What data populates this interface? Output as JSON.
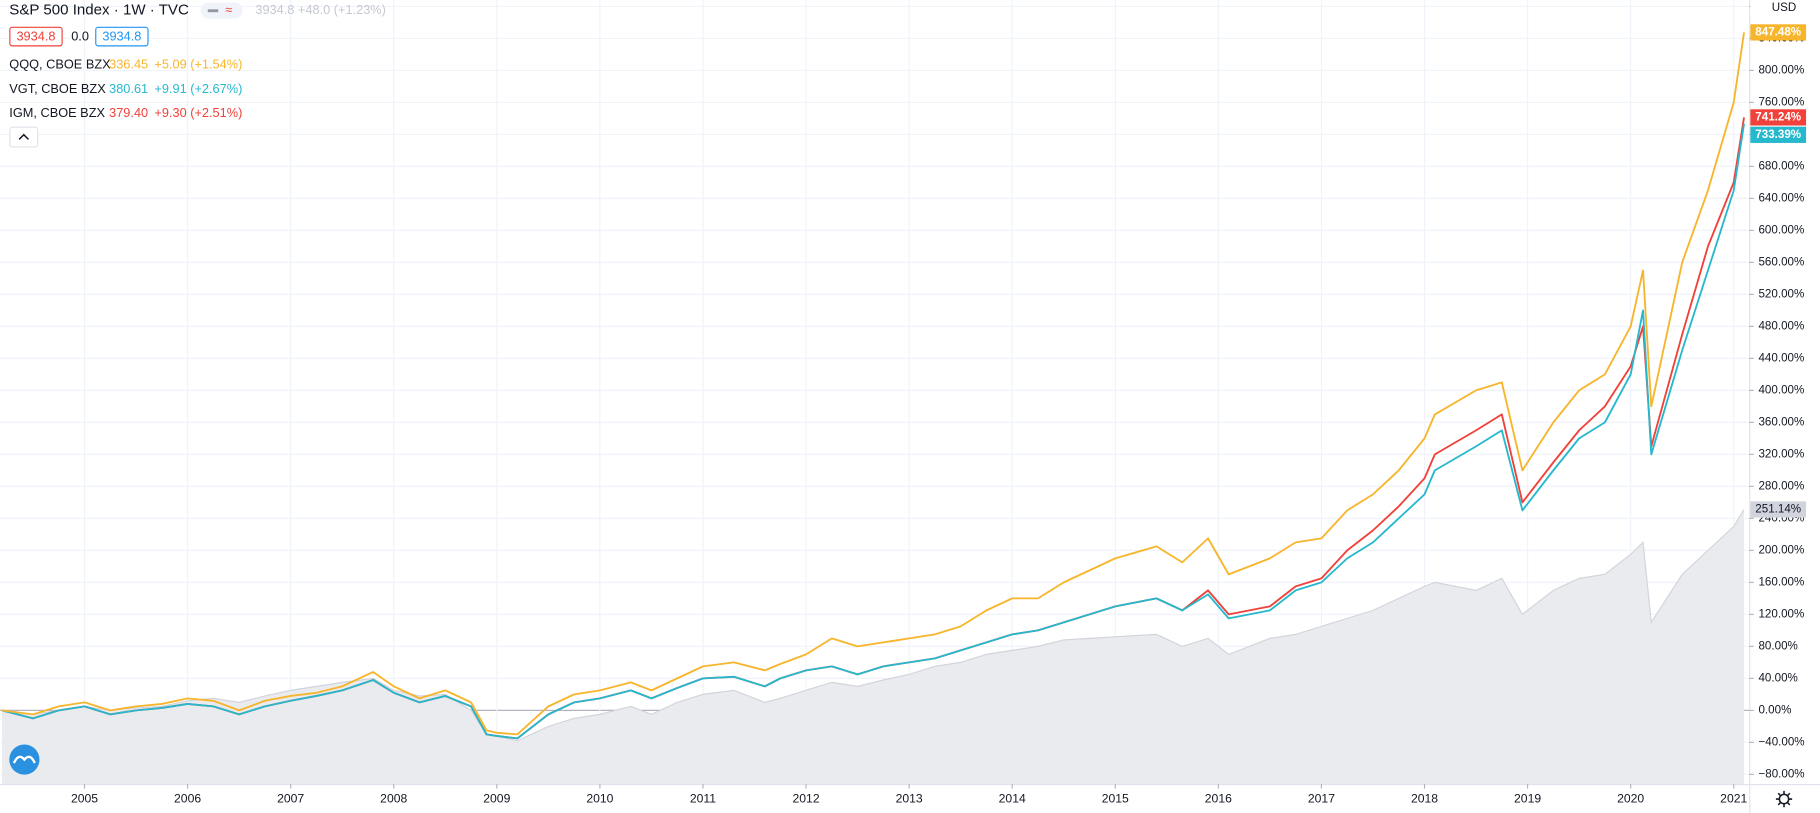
{
  "chart_data": {
    "type": "line",
    "title": "S&P 500 Index · 1W · TVC",
    "quote": "3934.8 +48.0 (+1.23%)",
    "ohlc": [
      "3934.8",
      "0.0",
      "3934.8"
    ],
    "currency": "USD",
    "grid": true,
    "x": [
      2004.2,
      2004.5,
      2004.75,
      2005.0,
      2005.25,
      2005.5,
      2005.75,
      2006.0,
      2006.25,
      2006.5,
      2006.75,
      2007.0,
      2007.25,
      2007.5,
      2007.8,
      2008.0,
      2008.25,
      2008.5,
      2008.75,
      2008.9,
      2009.0,
      2009.2,
      2009.5,
      2009.75,
      2010.0,
      2010.3,
      2010.5,
      2010.75,
      2011.0,
      2011.3,
      2011.6,
      2011.75,
      2012.0,
      2012.25,
      2012.5,
      2012.75,
      2013.0,
      2013.25,
      2013.5,
      2013.75,
      2014.0,
      2014.25,
      2014.5,
      2014.75,
      2015.0,
      2015.4,
      2015.65,
      2015.9,
      2016.1,
      2016.5,
      2016.75,
      2017.0,
      2017.25,
      2017.5,
      2017.75,
      2018.0,
      2018.1,
      2018.5,
      2018.75,
      2018.95,
      2019.25,
      2019.5,
      2019.75,
      2020.0,
      2020.12,
      2020.2,
      2020.5,
      2020.75,
      2021.0,
      2021.1
    ],
    "xlim": [
      2004.18,
      2021.15
    ],
    "xticks": [
      2005,
      2006,
      2007,
      2008,
      2009,
      2010,
      2011,
      2012,
      2013,
      2014,
      2015,
      2016,
      2017,
      2018,
      2019,
      2020,
      2021
    ],
    "ylim": [
      -92,
      888
    ],
    "yticks": [
      {
        "value": -80,
        "label": "−80.00%"
      },
      {
        "value": -40,
        "label": "−40.00%"
      },
      {
        "value": 0,
        "label": "0.00%"
      },
      {
        "value": 40,
        "label": "40.00%"
      },
      {
        "value": 80,
        "label": "80.00%"
      },
      {
        "value": 120,
        "label": "120.00%"
      },
      {
        "value": 160,
        "label": "160.00%"
      },
      {
        "value": 200,
        "label": "200.00%"
      },
      {
        "value": 240,
        "label": "240.00%"
      },
      {
        "value": 280,
        "label": "280.00%"
      },
      {
        "value": 320,
        "label": "320.00%"
      },
      {
        "value": 360,
        "label": "360.00%"
      },
      {
        "value": 400,
        "label": "400.00%"
      },
      {
        "value": 440,
        "label": "440.00%"
      },
      {
        "value": 480,
        "label": "480.00%"
      },
      {
        "value": 520,
        "label": "520.00%"
      },
      {
        "value": 560,
        "label": "560.00%"
      },
      {
        "value": 600,
        "label": "600.00%"
      },
      {
        "value": 640,
        "label": "640.00%"
      },
      {
        "value": 680,
        "label": "680.00%"
      },
      {
        "value": 720,
        "label": "720.00%"
      },
      {
        "value": 760,
        "label": "760.00%"
      },
      {
        "value": 800,
        "label": "800.00%"
      },
      {
        "value": 840,
        "label": "840.00%"
      },
      {
        "value": 880,
        "label": "880.00%"
      }
    ],
    "series": [
      {
        "name": "QQQ, CBOE BZX",
        "price": "336.45",
        "change": "+5.09 (+1.54%)",
        "color": "#f7b52c",
        "style": "line",
        "last_label": "847.48%",
        "values": [
          0,
          -5,
          5,
          10,
          0,
          5,
          8,
          15,
          12,
          0,
          12,
          18,
          22,
          30,
          48,
          30,
          15,
          25,
          10,
          -25,
          -28,
          -30,
          5,
          20,
          25,
          35,
          25,
          40,
          55,
          60,
          50,
          58,
          70,
          90,
          80,
          85,
          90,
          95,
          105,
          125,
          140,
          140,
          160,
          175,
          190,
          205,
          185,
          215,
          170,
          190,
          210,
          215,
          250,
          270,
          300,
          340,
          370,
          400,
          410,
          300,
          360,
          400,
          420,
          480,
          550,
          380,
          560,
          650,
          760,
          847.48
        ]
      },
      {
        "name": "VGT, CBOE BZX",
        "price": "380.61",
        "change": "+9.91 (+2.67%)",
        "color": "#26b8cc",
        "style": "line",
        "last_label": "733.39%",
        "values": [
          0,
          -10,
          0,
          5,
          -5,
          0,
          3,
          8,
          5,
          -5,
          5,
          12,
          18,
          25,
          38,
          22,
          10,
          18,
          5,
          -30,
          -32,
          -35,
          -5,
          10,
          15,
          25,
          15,
          28,
          40,
          42,
          30,
          40,
          50,
          55,
          45,
          55,
          60,
          65,
          75,
          85,
          95,
          100,
          110,
          120,
          130,
          140,
          125,
          145,
          115,
          125,
          150,
          160,
          190,
          210,
          240,
          270,
          300,
          330,
          350,
          250,
          300,
          340,
          360,
          420,
          500,
          320,
          450,
          550,
          650,
          733.39
        ]
      },
      {
        "name": "IGM, CBOE BZX",
        "price": "379.40",
        "change": "+9.30 (+2.51%)",
        "color": "#f0413a",
        "style": "line",
        "last_label": "741.24%",
        "values": [
          0,
          -10,
          0,
          5,
          -5,
          0,
          3,
          8,
          5,
          -5,
          5,
          12,
          18,
          25,
          38,
          22,
          10,
          18,
          5,
          -30,
          -32,
          -35,
          -5,
          10,
          15,
          25,
          15,
          28,
          40,
          42,
          30,
          40,
          50,
          55,
          45,
          55,
          60,
          65,
          75,
          85,
          95,
          100,
          110,
          120,
          130,
          140,
          125,
          150,
          120,
          130,
          155,
          165,
          200,
          225,
          255,
          290,
          320,
          350,
          370,
          260,
          310,
          350,
          380,
          430,
          480,
          330,
          470,
          580,
          660,
          741.24
        ]
      },
      {
        "color": "#d1d4dc",
        "fill": "#eaebef",
        "style": "area",
        "last_label": "251.14%",
        "values": [
          0,
          -5,
          0,
          5,
          0,
          3,
          5,
          12,
          15,
          10,
          18,
          25,
          30,
          35,
          40,
          25,
          18,
          20,
          0,
          -30,
          -32,
          -38,
          -20,
          -10,
          -5,
          5,
          -5,
          10,
          20,
          25,
          10,
          15,
          25,
          35,
          30,
          38,
          45,
          55,
          60,
          70,
          75,
          80,
          88,
          90,
          92,
          95,
          80,
          90,
          70,
          90,
          95,
          105,
          115,
          125,
          140,
          155,
          160,
          150,
          165,
          120,
          150,
          165,
          170,
          195,
          210,
          110,
          170,
          200,
          230,
          251.14
        ]
      }
    ]
  }
}
